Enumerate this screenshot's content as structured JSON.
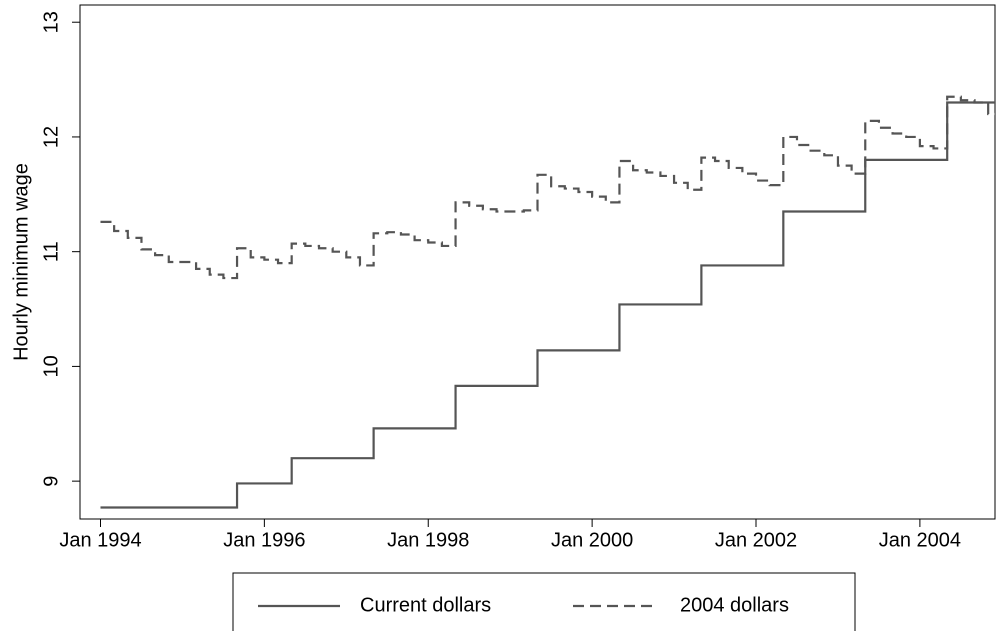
{
  "chart_data": {
    "type": "line",
    "step": true,
    "y_label": "Hourly minimum wage",
    "x": [
      "1994-01",
      "1994-03",
      "1994-05",
      "1994-07",
      "1994-09",
      "1994-11",
      "1995-01",
      "1995-03",
      "1995-05",
      "1995-07",
      "1995-09",
      "1995-11",
      "1996-01",
      "1996-03",
      "1996-05",
      "1996-07",
      "1996-09",
      "1996-11",
      "1997-01",
      "1997-03",
      "1997-05",
      "1997-07",
      "1997-09",
      "1997-11",
      "1998-01",
      "1998-03",
      "1998-05",
      "1998-07",
      "1998-09",
      "1998-11",
      "1999-01",
      "1999-03",
      "1999-05",
      "1999-07",
      "1999-09",
      "1999-11",
      "2000-01",
      "2000-03",
      "2000-05",
      "2000-07",
      "2000-09",
      "2000-11",
      "2001-01",
      "2001-03",
      "2001-05",
      "2001-07",
      "2001-09",
      "2001-11",
      "2002-01",
      "2002-03",
      "2002-05",
      "2002-07",
      "2002-09",
      "2002-11",
      "2003-01",
      "2003-03",
      "2003-05",
      "2003-07",
      "2003-09",
      "2003-11",
      "2004-01",
      "2004-03",
      "2004-05",
      "2004-07",
      "2004-09",
      "2004-11"
    ],
    "series": [
      {
        "name": "Current dollars",
        "color": "#555555",
        "dash": false,
        "values": [
          8.77,
          8.77,
          8.77,
          8.77,
          8.77,
          8.77,
          8.77,
          8.77,
          8.77,
          8.77,
          8.98,
          8.98,
          8.98,
          8.98,
          9.2,
          9.2,
          9.2,
          9.2,
          9.2,
          9.2,
          9.46,
          9.46,
          9.46,
          9.46,
          9.46,
          9.46,
          9.83,
          9.83,
          9.83,
          9.83,
          9.83,
          9.83,
          10.14,
          10.14,
          10.14,
          10.14,
          10.14,
          10.14,
          10.54,
          10.54,
          10.54,
          10.54,
          10.54,
          10.54,
          10.88,
          10.88,
          10.88,
          10.88,
          10.88,
          10.88,
          11.35,
          11.35,
          11.35,
          11.35,
          11.35,
          11.35,
          11.8,
          11.8,
          11.8,
          11.8,
          11.8,
          11.8,
          12.3,
          12.3,
          12.3,
          12.3
        ]
      },
      {
        "name": "2004 dollars",
        "color": "#555555",
        "dash": true,
        "values": [
          11.26,
          11.18,
          11.12,
          11.02,
          10.97,
          10.91,
          10.91,
          10.85,
          10.8,
          10.77,
          11.03,
          10.95,
          10.93,
          10.9,
          11.07,
          11.05,
          11.03,
          11.0,
          10.95,
          10.88,
          11.16,
          11.17,
          11.15,
          11.1,
          11.08,
          11.05,
          11.43,
          11.4,
          11.37,
          11.35,
          11.35,
          11.36,
          11.67,
          11.57,
          11.55,
          11.52,
          11.48,
          11.43,
          11.79,
          11.71,
          11.69,
          11.66,
          11.6,
          11.54,
          11.82,
          11.79,
          11.73,
          11.68,
          11.62,
          11.58,
          12.0,
          11.93,
          11.88,
          11.84,
          11.75,
          11.68,
          12.14,
          12.08,
          12.03,
          12.0,
          11.92,
          11.9,
          12.35,
          12.32,
          12.3,
          12.2
        ]
      }
    ],
    "xlim": [
      "1993-10",
      "2004-12"
    ],
    "xticks": [
      {
        "value": "1994-01",
        "label": "Jan 1994"
      },
      {
        "value": "1996-01",
        "label": "Jan 1996"
      },
      {
        "value": "1998-01",
        "label": "Jan 1998"
      },
      {
        "value": "2000-01",
        "label": "Jan 2000"
      },
      {
        "value": "2002-01",
        "label": "Jan 2002"
      },
      {
        "value": "2004-01",
        "label": "Jan 2004"
      }
    ],
    "ylim": [
      8.67,
      13.15
    ],
    "yticks": [
      9,
      10,
      11,
      12,
      13
    ],
    "grid": false,
    "legend": "bottom"
  }
}
